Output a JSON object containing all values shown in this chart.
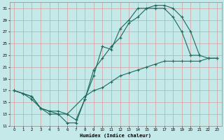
{
  "xlabel": "Humidex (Indice chaleur)",
  "bg_color": "#c5e8e8",
  "grid_color": "#d4a0a0",
  "line_color": "#1a6b5e",
  "xlim": [
    -0.5,
    23.5
  ],
  "ylim": [
    11,
    32
  ],
  "yticks": [
    11,
    13,
    15,
    17,
    19,
    21,
    23,
    25,
    27,
    29,
    31
  ],
  "xticks": [
    0,
    1,
    2,
    3,
    4,
    5,
    6,
    7,
    8,
    9,
    10,
    11,
    12,
    13,
    14,
    15,
    16,
    17,
    18,
    19,
    20,
    21,
    22,
    23
  ],
  "line1_x": [
    0,
    1,
    2,
    3,
    4,
    5,
    6,
    7,
    8,
    9,
    10,
    11,
    12,
    13,
    14,
    15,
    16,
    17,
    18,
    19,
    20,
    21
  ],
  "line1_y": [
    17,
    16.5,
    15.5,
    14,
    13,
    13,
    11.5,
    11.5,
    15.5,
    19.5,
    24.5,
    24,
    27.5,
    29,
    31,
    31,
    31,
    31,
    29.5,
    27,
    23,
    23
  ],
  "line2_x": [
    0,
    1,
    2,
    3,
    4,
    5,
    6,
    7,
    8,
    9,
    10,
    11,
    12,
    13,
    14,
    15,
    16,
    17,
    18,
    19,
    20,
    21,
    22,
    23
  ],
  "line2_y": [
    17,
    16.5,
    16,
    14,
    13.5,
    13.5,
    13,
    12,
    15.5,
    20.5,
    22.5,
    24.5,
    26,
    28.5,
    29.5,
    31,
    31.5,
    31.5,
    31,
    29.5,
    27,
    23,
    22.5,
    22.5
  ],
  "line3_x": [
    0,
    2,
    3,
    4,
    5,
    6,
    8,
    9,
    10,
    11,
    12,
    13,
    14,
    15,
    16,
    17,
    18,
    19,
    20,
    21,
    22,
    23
  ],
  "line3_y": [
    17,
    16,
    14,
    13.5,
    13,
    13,
    16,
    17,
    17.5,
    18.5,
    19.5,
    20,
    20.5,
    21,
    21.5,
    22,
    22,
    22,
    22,
    22,
    22.5,
    22.5
  ]
}
